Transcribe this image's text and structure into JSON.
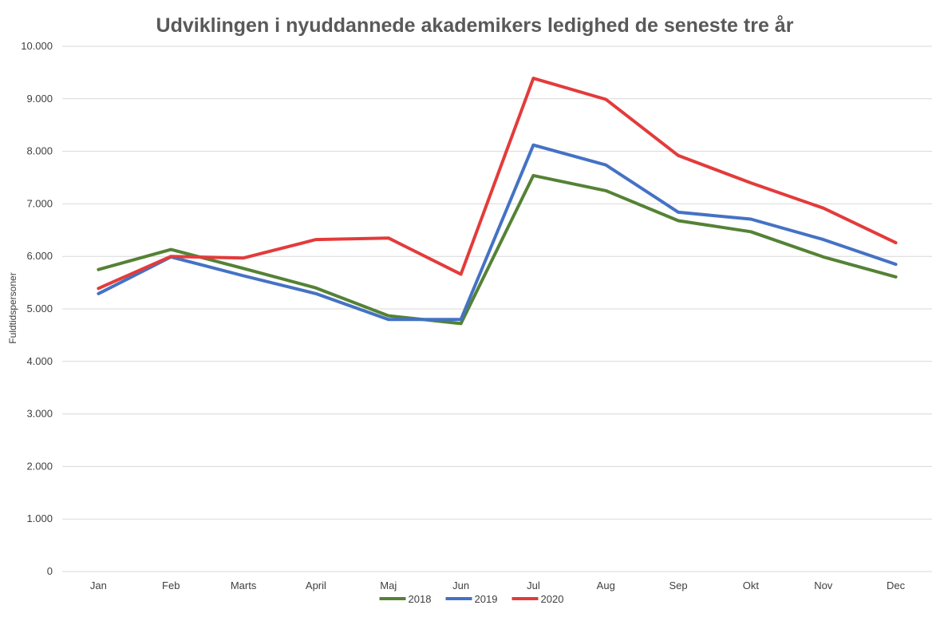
{
  "chart_data": {
    "type": "line",
    "title": "Udviklingen i nyuddannede akademikers ledighed de seneste tre år",
    "xlabel": "",
    "ylabel": "Fuldtidspersoner",
    "categories": [
      "Jan",
      "Feb",
      "Marts",
      "April",
      "Maj",
      "Jun",
      "Jul",
      "Aug",
      "Sep",
      "Okt",
      "Nov",
      "Dec"
    ],
    "ylim": [
      0,
      10000
    ],
    "yticks": [
      0,
      1000,
      2000,
      3000,
      4000,
      5000,
      6000,
      7000,
      8000,
      9000,
      10000
    ],
    "ytick_labels": [
      "0",
      "1.000",
      "2.000",
      "3.000",
      "4.000",
      "5.000",
      "6.000",
      "7.000",
      "8.000",
      "9.000",
      "10.000"
    ],
    "grid": true,
    "legend_position": "bottom",
    "series": [
      {
        "name": "2018",
        "color": "#548235",
        "values": [
          5750,
          6130,
          5770,
          5400,
          4870,
          4720,
          7540,
          7250,
          6680,
          6470,
          5990,
          5610
        ]
      },
      {
        "name": "2019",
        "color": "#4472c4",
        "values": [
          5290,
          5990,
          5630,
          5290,
          4800,
          4800,
          8120,
          7740,
          6840,
          6710,
          6320,
          5850
        ]
      },
      {
        "name": "2020",
        "color": "#e33b3b",
        "values": [
          5390,
          6000,
          5970,
          6320,
          6350,
          5660,
          9390,
          8990,
          7920,
          7400,
          6920,
          6260
        ]
      }
    ]
  }
}
